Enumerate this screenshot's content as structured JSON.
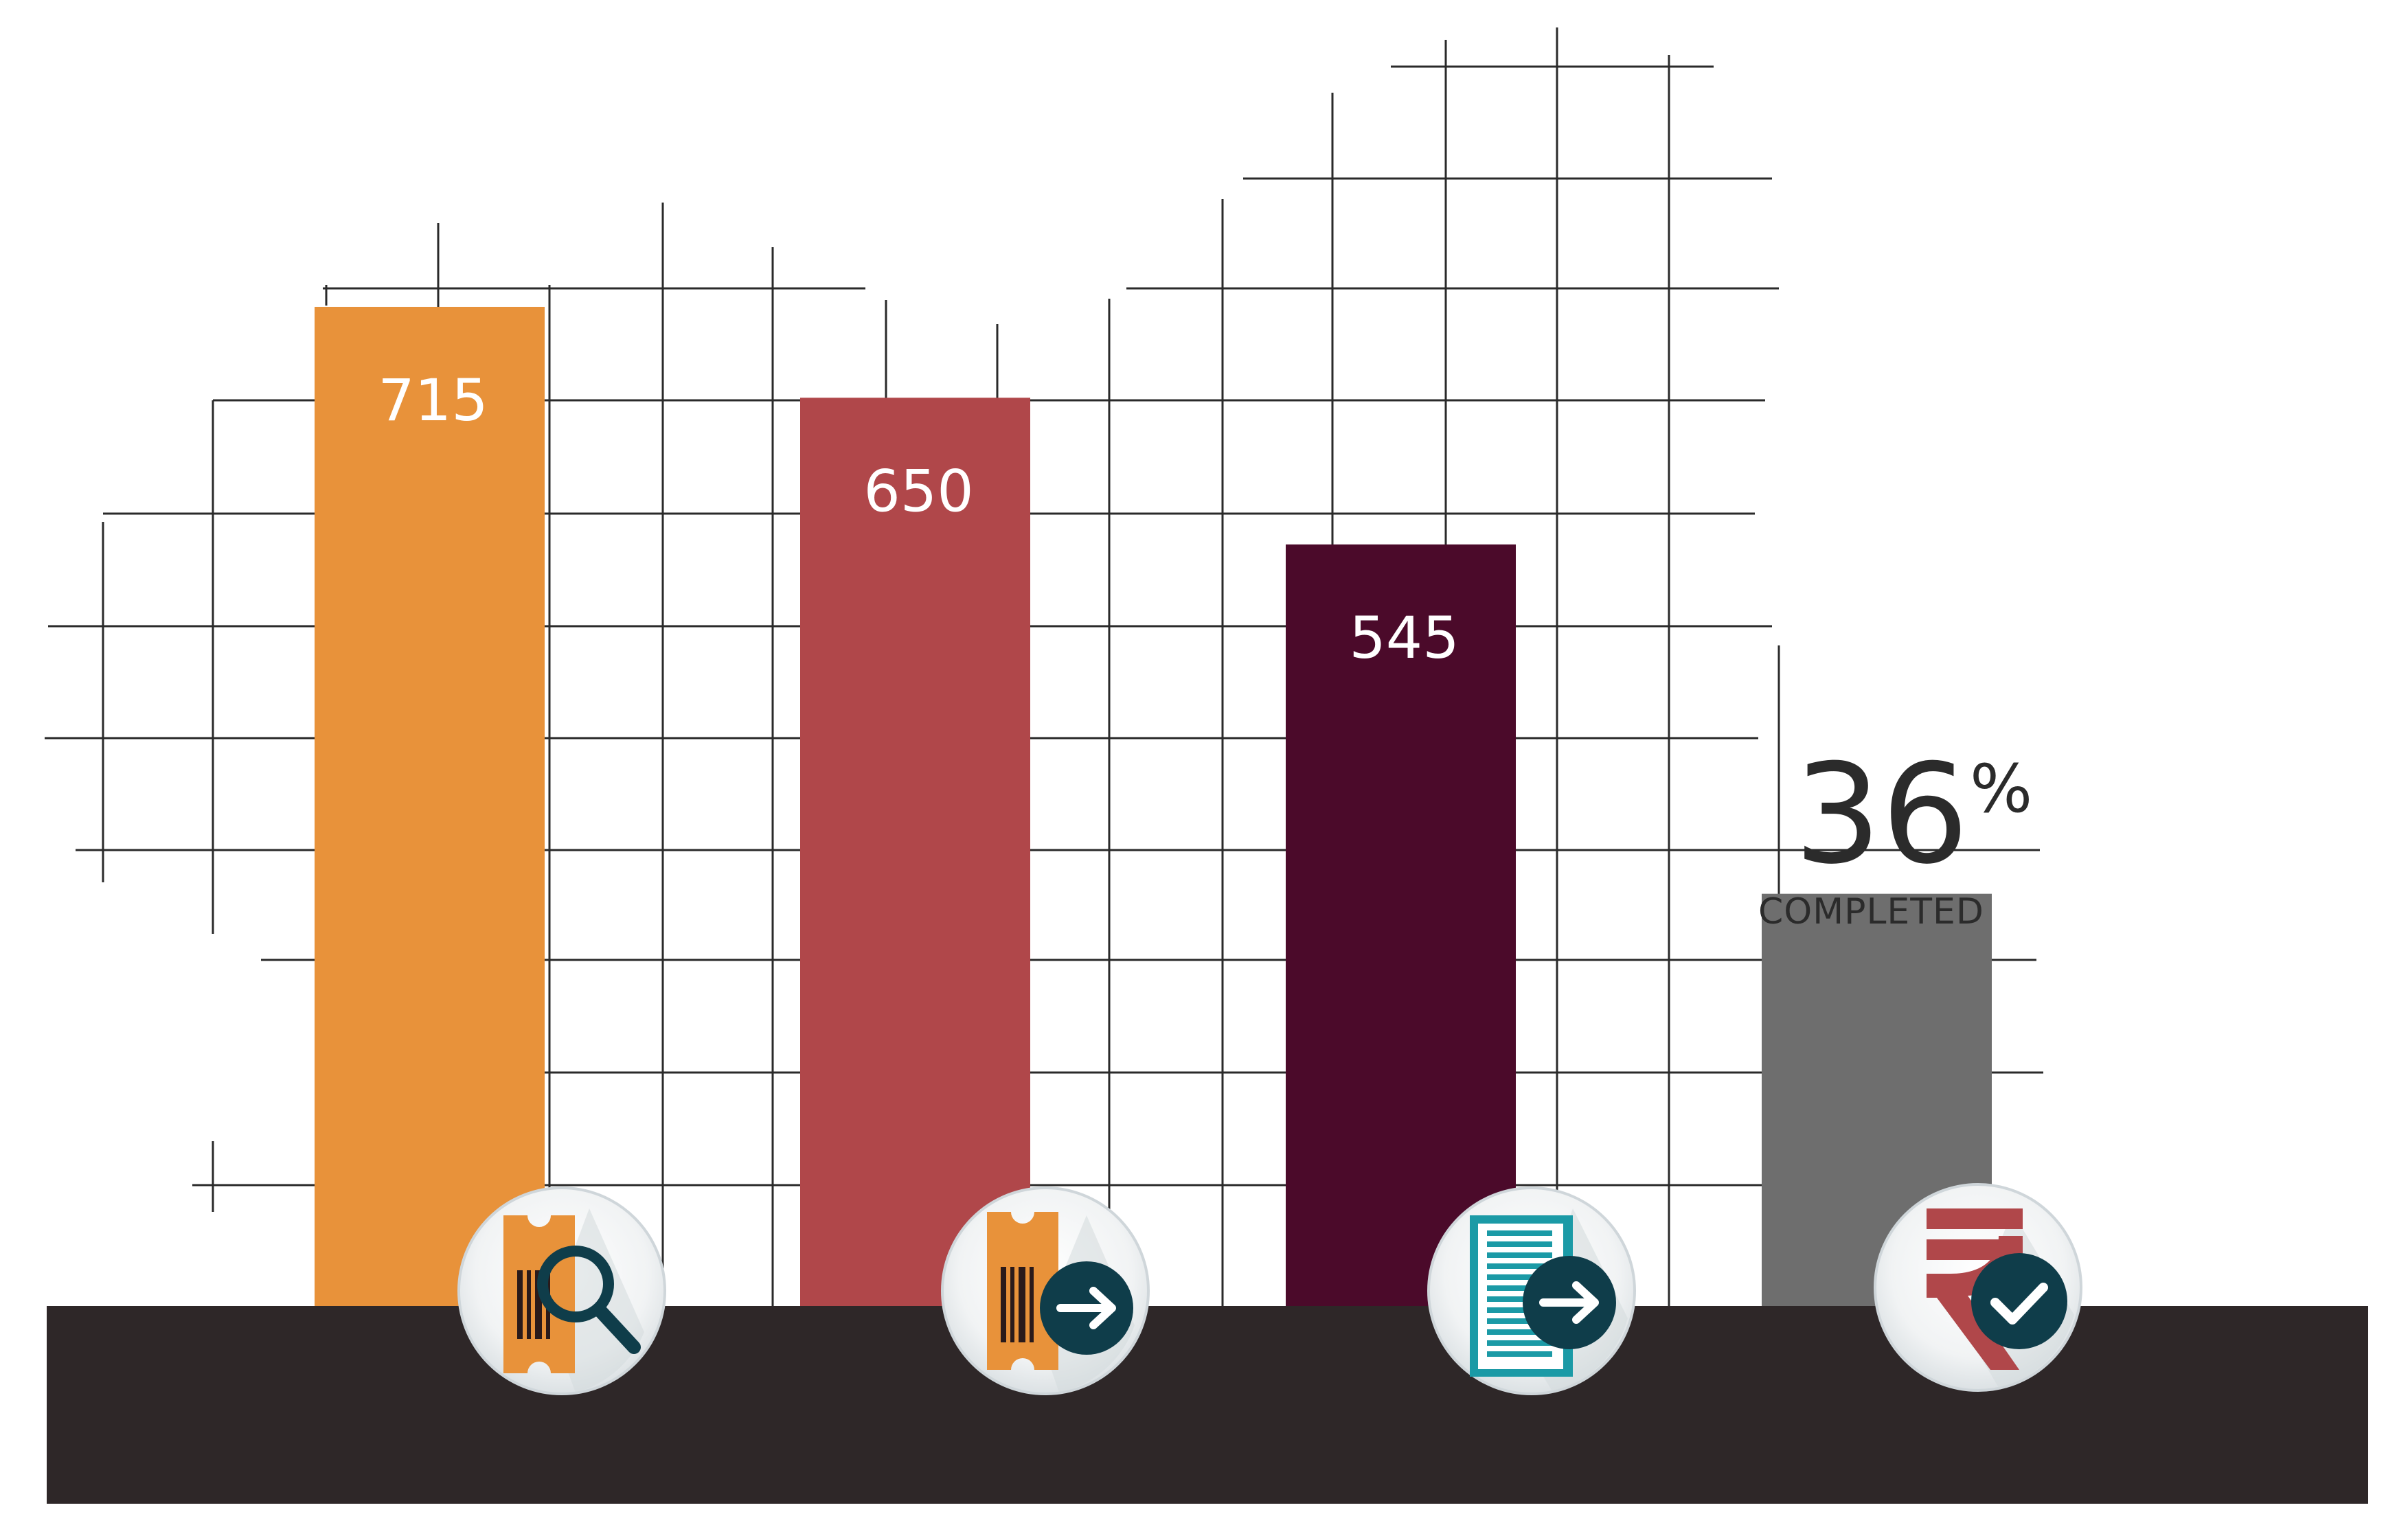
{
  "chart_data": {
    "type": "bar",
    "categories": [
      "",
      "",
      "",
      ""
    ],
    "values": [
      715,
      650,
      545,
      295
    ],
    "data_labels": [
      "715",
      "650",
      "545",
      ""
    ],
    "colors": [
      "#E8923A",
      "#B0474A",
      "#4B0A2A",
      "#6E6E6E"
    ],
    "icons": [
      "ticket-search-icon",
      "ticket-forward-icon",
      "document-forward-icon",
      "rupee-check-icon"
    ],
    "title": "",
    "xlabel": "",
    "ylabel": "",
    "ylim": [
      0,
      900
    ],
    "grid": true
  },
  "annotation": {
    "value": "36",
    "unit": "%",
    "caption": "COMPLETED"
  },
  "colors": {
    "base": "#2E2728",
    "icon_dark": "#0F3D4A",
    "icon_teal": "#1B9AA6"
  }
}
